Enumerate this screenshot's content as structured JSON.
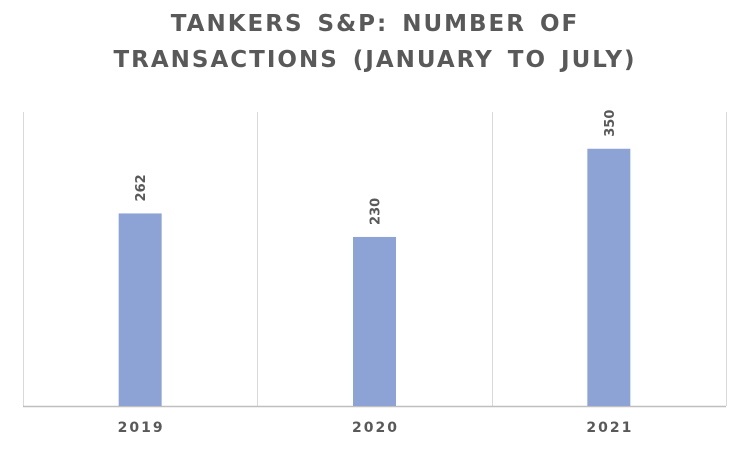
{
  "chart_data": {
    "type": "bar",
    "title_lines": [
      "TANKERS S&P: NUMBER OF",
      "TRANSACTIONS (JANUARY TO JULY)"
    ],
    "categories": [
      "2019",
      "2020",
      "2021"
    ],
    "values": [
      262,
      230,
      350
    ],
    "data_labels": [
      "262",
      "230",
      "350"
    ],
    "ylim": [
      0,
      400
    ],
    "grid": "vertical category separators",
    "legend": "none",
    "bar_color": "#8EA3D5",
    "axis_color": "#BFBFBF",
    "text_color": "#595959"
  }
}
